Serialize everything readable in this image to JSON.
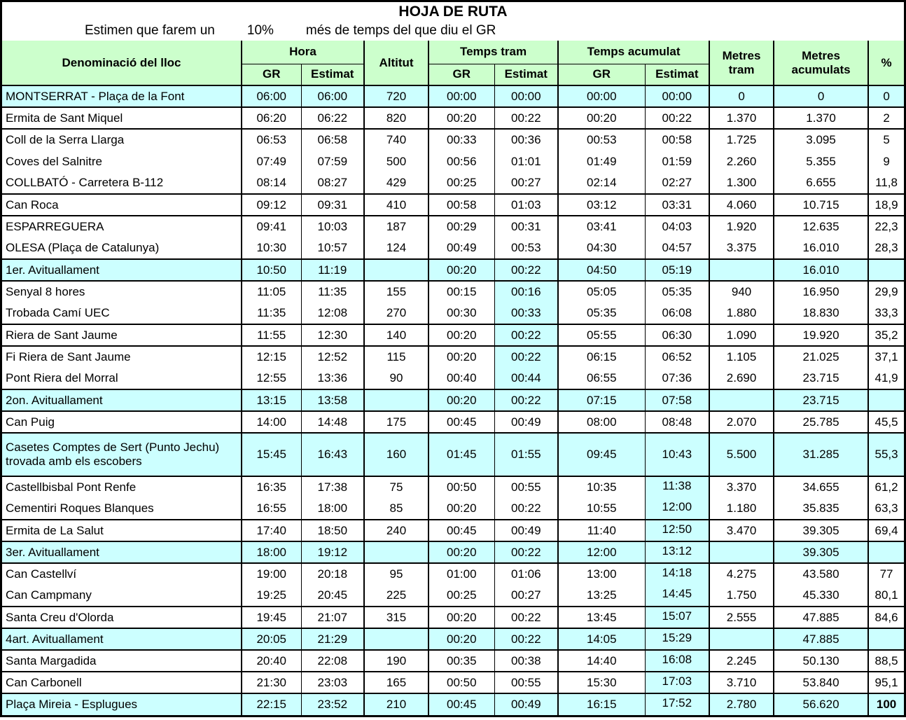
{
  "title": "HOJA DE RUTA",
  "subtitle": {
    "prefix": "Estimen que farem un",
    "percent": "10%",
    "suffix": "més de temps del que diu el GR"
  },
  "colors": {
    "header_green": "#ccffcc",
    "highlight_cyan": "#ccffff",
    "border_black": "#000000"
  },
  "header": {
    "lloc": "Denominació del lloc",
    "hora": "Hora",
    "gr": "GR",
    "estimat": "Estimat",
    "altitut": "Altitut",
    "temps_tram": "Temps tram",
    "temps_acumulat": "Temps acumulat",
    "metres": "Metres",
    "tram": "tram",
    "acumulats": "acumulats",
    "percent": "%"
  },
  "rows": [
    {
      "cells": [
        "MONTSERRAT - Plaça de la Font",
        "06:00",
        "06:00",
        "720",
        "00:00",
        "00:00",
        "00:00",
        "00:00",
        "0",
        "0",
        "0"
      ],
      "row_highlight": true,
      "tt_est_highlight": false,
      "ta_est_highlight": false,
      "group_end": true,
      "tall": false,
      "pct_bold": false
    },
    {
      "cells": [
        "Ermita de Sant Miquel",
        "06:20",
        "06:22",
        "820",
        "00:20",
        "00:22",
        "00:20",
        "00:22",
        "1.370",
        "1.370",
        "2"
      ],
      "row_highlight": false,
      "tt_est_highlight": false,
      "ta_est_highlight": false,
      "group_end": true,
      "tall": false,
      "pct_bold": false
    },
    {
      "cells": [
        "Coll de la Serra Llarga",
        "06:53",
        "06:58",
        "740",
        "00:33",
        "00:36",
        "00:53",
        "00:58",
        "1.725",
        "3.095",
        "5"
      ],
      "row_highlight": false,
      "tt_est_highlight": false,
      "ta_est_highlight": false,
      "group_end": false,
      "tall": false,
      "pct_bold": false
    },
    {
      "cells": [
        "Coves del Salnitre",
        "07:49",
        "07:59",
        "500",
        "00:56",
        "01:01",
        "01:49",
        "01:59",
        "2.260",
        "5.355",
        "9"
      ],
      "row_highlight": false,
      "tt_est_highlight": false,
      "ta_est_highlight": false,
      "group_end": false,
      "tall": false,
      "pct_bold": false
    },
    {
      "cells": [
        "COLLBATÓ - Carretera B-112",
        "08:14",
        "08:27",
        "429",
        "00:25",
        "00:27",
        "02:14",
        "02:27",
        "1.300",
        "6.655",
        "11,8"
      ],
      "row_highlight": false,
      "tt_est_highlight": false,
      "ta_est_highlight": false,
      "group_end": true,
      "tall": false,
      "pct_bold": false
    },
    {
      "cells": [
        "Can Roca",
        "09:12",
        "09:31",
        "410",
        "00:58",
        "01:03",
        "03:12",
        "03:31",
        "4.060",
        "10.715",
        "18,9"
      ],
      "row_highlight": false,
      "tt_est_highlight": false,
      "ta_est_highlight": false,
      "group_end": true,
      "tall": false,
      "pct_bold": false
    },
    {
      "cells": [
        "ESPARREGUERA",
        "09:41",
        "10:03",
        "187",
        "00:29",
        "00:31",
        "03:41",
        "04:03",
        "1.920",
        "12.635",
        "22,3"
      ],
      "row_highlight": false,
      "tt_est_highlight": false,
      "ta_est_highlight": false,
      "group_end": false,
      "tall": false,
      "pct_bold": false
    },
    {
      "cells": [
        "OLESA (Plaça de Catalunya)",
        "10:30",
        "10:57",
        "124",
        "00:49",
        "00:53",
        "04:30",
        "04:57",
        "3.375",
        "16.010",
        "28,3"
      ],
      "row_highlight": false,
      "tt_est_highlight": false,
      "ta_est_highlight": false,
      "group_end": true,
      "tall": false,
      "pct_bold": false
    },
    {
      "cells": [
        "1er. Avituallament",
        "10:50",
        "11:19",
        "",
        "00:20",
        "00:22",
        "04:50",
        "05:19",
        "",
        "16.010",
        ""
      ],
      "row_highlight": true,
      "tt_est_highlight": false,
      "ta_est_highlight": false,
      "group_end": true,
      "tall": false,
      "pct_bold": false
    },
    {
      "cells": [
        "Senyal 8 hores",
        "11:05",
        "11:35",
        "155",
        "00:15",
        "00:16",
        "05:05",
        "05:35",
        "940",
        "16.950",
        "29,9"
      ],
      "row_highlight": false,
      "tt_est_highlight": true,
      "ta_est_highlight": false,
      "group_end": false,
      "tall": false,
      "pct_bold": false
    },
    {
      "cells": [
        "Trobada Camí UEC",
        "11:35",
        "12:08",
        "270",
        "00:30",
        "00:33",
        "05:35",
        "06:08",
        "1.880",
        "18.830",
        "33,3"
      ],
      "row_highlight": false,
      "tt_est_highlight": true,
      "ta_est_highlight": false,
      "group_end": true,
      "tall": false,
      "pct_bold": false
    },
    {
      "cells": [
        "Riera de Sant Jaume",
        "11:55",
        "12:30",
        "140",
        "00:20",
        "00:22",
        "05:55",
        "06:30",
        "1.090",
        "19.920",
        "35,2"
      ],
      "row_highlight": false,
      "tt_est_highlight": true,
      "ta_est_highlight": false,
      "group_end": true,
      "tall": false,
      "pct_bold": false
    },
    {
      "cells": [
        "Fi Riera de Sant Jaume",
        "12:15",
        "12:52",
        "115",
        "00:20",
        "00:22",
        "06:15",
        "06:52",
        "1.105",
        "21.025",
        "37,1"
      ],
      "row_highlight": false,
      "tt_est_highlight": true,
      "ta_est_highlight": false,
      "group_end": false,
      "tall": false,
      "pct_bold": false
    },
    {
      "cells": [
        "Pont Riera del Morral",
        "12:55",
        "13:36",
        "90",
        "00:40",
        "00:44",
        "06:55",
        "07:36",
        "2.690",
        "23.715",
        "41,9"
      ],
      "row_highlight": false,
      "tt_est_highlight": true,
      "ta_est_highlight": false,
      "group_end": true,
      "tall": false,
      "pct_bold": false
    },
    {
      "cells": [
        "2on. Avituallament",
        "13:15",
        "13:58",
        "",
        "00:20",
        "00:22",
        "07:15",
        "07:58",
        "",
        "23.715",
        ""
      ],
      "row_highlight": true,
      "tt_est_highlight": false,
      "ta_est_highlight": false,
      "group_end": true,
      "tall": false,
      "pct_bold": false
    },
    {
      "cells": [
        "Can Puig",
        "14:00",
        "14:48",
        "175",
        "00:45",
        "00:49",
        "08:00",
        "08:48",
        "2.070",
        "25.785",
        "45,5"
      ],
      "row_highlight": false,
      "tt_est_highlight": false,
      "ta_est_highlight": false,
      "group_end": true,
      "tall": false,
      "pct_bold": false
    },
    {
      "cells": [
        "Casetes Comptes de Sert (Punto Jechu) trovada amb els escobers",
        "15:45",
        "16:43",
        "160",
        "01:45",
        "01:55",
        "09:45",
        "10:43",
        "5.500",
        "31.285",
        "55,3"
      ],
      "row_highlight": true,
      "tt_est_highlight": false,
      "ta_est_highlight": false,
      "group_end": true,
      "tall": true,
      "pct_bold": false
    },
    {
      "cells": [
        "Castellbisbal Pont Renfe",
        "16:35",
        "17:38",
        "75",
        "00:50",
        "00:55",
        "10:35",
        "11:38",
        "3.370",
        "34.655",
        "61,2"
      ],
      "row_highlight": false,
      "tt_est_highlight": false,
      "ta_est_highlight": true,
      "group_end": false,
      "tall": false,
      "pct_bold": false
    },
    {
      "cells": [
        "Cementiri Roques Blanques",
        "16:55",
        "18:00",
        "85",
        "00:20",
        "00:22",
        "10:55",
        "12:00",
        "1.180",
        "35.835",
        "63,3"
      ],
      "row_highlight": false,
      "tt_est_highlight": false,
      "ta_est_highlight": true,
      "group_end": true,
      "tall": false,
      "pct_bold": false
    },
    {
      "cells": [
        "Ermita de La Salut",
        "17:40",
        "18:50",
        "240",
        "00:45",
        "00:49",
        "11:40",
        "12:50",
        "3.470",
        "39.305",
        "69,4"
      ],
      "row_highlight": false,
      "tt_est_highlight": false,
      "ta_est_highlight": true,
      "group_end": true,
      "tall": false,
      "pct_bold": false
    },
    {
      "cells": [
        "3er. Avituallament",
        "18:00",
        "19:12",
        "",
        "00:20",
        "00:22",
        "12:00",
        "13:12",
        "",
        "39.305",
        ""
      ],
      "row_highlight": true,
      "tt_est_highlight": false,
      "ta_est_highlight": true,
      "group_end": true,
      "tall": false,
      "pct_bold": false
    },
    {
      "cells": [
        "Can Castellví",
        "19:00",
        "20:18",
        "95",
        "01:00",
        "01:06",
        "13:00",
        "14:18",
        "4.275",
        "43.580",
        "77"
      ],
      "row_highlight": false,
      "tt_est_highlight": false,
      "ta_est_highlight": true,
      "group_end": false,
      "tall": false,
      "pct_bold": false
    },
    {
      "cells": [
        "Can Campmany",
        "19:25",
        "20:45",
        "225",
        "00:25",
        "00:27",
        "13:25",
        "14:45",
        "1.750",
        "45.330",
        "80,1"
      ],
      "row_highlight": false,
      "tt_est_highlight": false,
      "ta_est_highlight": true,
      "group_end": true,
      "tall": false,
      "pct_bold": false
    },
    {
      "cells": [
        "Santa Creu d'Olorda",
        "19:45",
        "21:07",
        "315",
        "00:20",
        "00:22",
        "13:45",
        "15:07",
        "2.555",
        "47.885",
        "84,6"
      ],
      "row_highlight": false,
      "tt_est_highlight": false,
      "ta_est_highlight": true,
      "group_end": true,
      "tall": false,
      "pct_bold": false
    },
    {
      "cells": [
        "4art. Avituallament",
        "20:05",
        "21:29",
        "",
        "00:20",
        "00:22",
        "14:05",
        "15:29",
        "",
        "47.885",
        ""
      ],
      "row_highlight": true,
      "tt_est_highlight": false,
      "ta_est_highlight": true,
      "group_end": true,
      "tall": false,
      "pct_bold": false
    },
    {
      "cells": [
        "Santa Margadida",
        "20:40",
        "22:08",
        "190",
        "00:35",
        "00:38",
        "14:40",
        "16:08",
        "2.245",
        "50.130",
        "88,5"
      ],
      "row_highlight": false,
      "tt_est_highlight": false,
      "ta_est_highlight": true,
      "group_end": true,
      "tall": false,
      "pct_bold": false
    },
    {
      "cells": [
        "Can Carbonell",
        "21:30",
        "23:03",
        "165",
        "00:50",
        "00:55",
        "15:30",
        "17:03",
        "3.710",
        "53.840",
        "95,1"
      ],
      "row_highlight": false,
      "tt_est_highlight": false,
      "ta_est_highlight": true,
      "group_end": true,
      "tall": false,
      "pct_bold": false
    },
    {
      "cells": [
        "Plaça Mireia - Esplugues",
        "22:15",
        "23:52",
        "210",
        "00:45",
        "00:49",
        "16:15",
        "17:52",
        "2.780",
        "56.620",
        "100"
      ],
      "row_highlight": true,
      "tt_est_highlight": false,
      "ta_est_highlight": true,
      "group_end": false,
      "tall": false,
      "pct_bold": true
    }
  ]
}
